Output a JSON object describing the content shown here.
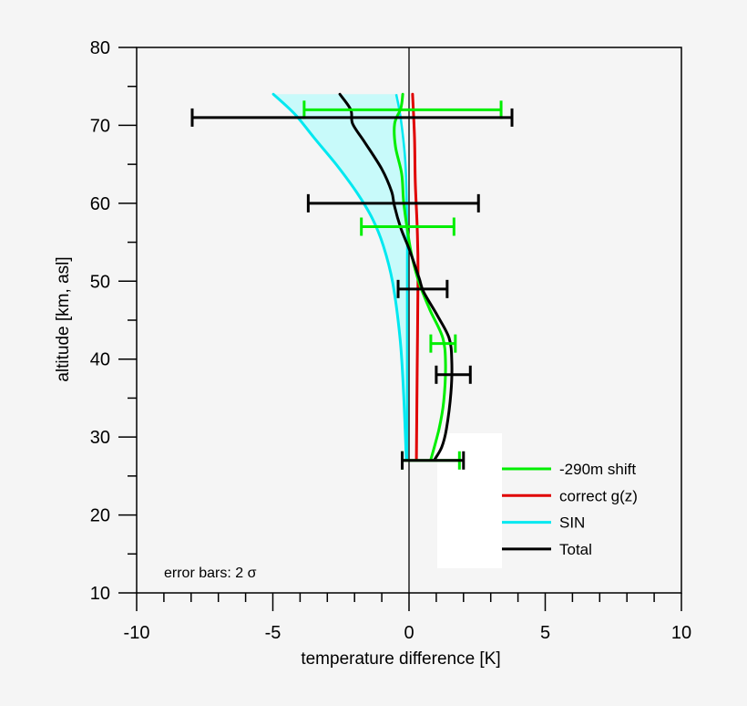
{
  "chart_data": {
    "type": "line",
    "title": "",
    "xlabel": "temperature difference [K]",
    "ylabel": "altitude [km, asl]",
    "xlim": [
      -10,
      10
    ],
    "ylim": [
      10,
      80
    ],
    "xticks": [
      -10,
      -5,
      0,
      5,
      10
    ],
    "xtick_labels": [
      "-10",
      "-5",
      "0",
      "5",
      "10"
    ],
    "x_minor_step": 1,
    "yticks": [
      10,
      20,
      30,
      40,
      50,
      60,
      70,
      80
    ],
    "ytick_labels": [
      "10",
      "20",
      "30",
      "40",
      "50",
      "60",
      "70",
      "80"
    ],
    "y_minor_step": 5,
    "grid": false,
    "zero_line": true,
    "legend_position": "lower right",
    "annotation": "error bars: 2 σ",
    "series": [
      {
        "name": "-290m shift",
        "color": "#00ee00",
        "points": [
          [
            -0.23,
            74
          ],
          [
            -0.3,
            72.2
          ],
          [
            -0.53,
            70.2
          ],
          [
            -0.5,
            67.3
          ],
          [
            -0.27,
            63.8
          ],
          [
            -0.2,
            60.3
          ],
          [
            -0.07,
            56.8
          ],
          [
            0.1,
            53.3
          ],
          [
            0.37,
            49.8
          ],
          [
            0.77,
            46.3
          ],
          [
            1.24,
            42.7
          ],
          [
            1.34,
            39.2
          ],
          [
            1.27,
            34.5
          ],
          [
            1.1,
            31
          ],
          [
            0.8,
            27.1
          ]
        ],
        "error_bars": [
          {
            "y": 72,
            "xmin": -3.85,
            "xmax": 3.38
          },
          {
            "y": 57,
            "xmin": -1.75,
            "xmax": 1.65
          },
          {
            "y": 42,
            "xmin": 0.8,
            "xmax": 1.7
          },
          {
            "y": 27,
            "xmin": -0.25,
            "xmax": 1.85
          }
        ]
      },
      {
        "name": "correct g(z)",
        "color": "#e00000",
        "points": [
          [
            0.13,
            74
          ],
          [
            0.2,
            68.5
          ],
          [
            0.23,
            62.6
          ],
          [
            0.3,
            56.8
          ],
          [
            0.33,
            50.9
          ],
          [
            0.3,
            39.2
          ],
          [
            0.27,
            27.1
          ]
        ]
      },
      {
        "name": "SIN",
        "color": "#00e8f0",
        "fill_color": "#c8fafa",
        "points": [
          [
            -4.98,
            74
          ],
          [
            -4.18,
            71.4
          ],
          [
            -3.51,
            68.5
          ],
          [
            -2.68,
            65
          ],
          [
            -1.94,
            61.5
          ],
          [
            -1.34,
            58
          ],
          [
            -0.94,
            54.5
          ],
          [
            -0.6,
            49.8
          ],
          [
            -0.33,
            42.7
          ],
          [
            -0.2,
            35.7
          ],
          [
            -0.1,
            27.1
          ]
        ],
        "band_upper": [
          [
            -0.47,
            74
          ],
          [
            -0.3,
            70.8
          ],
          [
            -0.13,
            65
          ],
          [
            -0.07,
            56.8
          ],
          [
            -0.07,
            49.8
          ],
          [
            -0.07,
            27.1
          ]
        ]
      },
      {
        "name": "Total",
        "color": "#000000",
        "points": [
          [
            -2.54,
            74
          ],
          [
            -2.14,
            72
          ],
          [
            -2.07,
            70.2
          ],
          [
            -1.64,
            67.9
          ],
          [
            -1.0,
            64.4
          ],
          [
            -0.64,
            61.5
          ],
          [
            -0.54,
            59.7
          ],
          [
            -0.3,
            56.8
          ],
          [
            0.03,
            53.9
          ],
          [
            0.37,
            50.4
          ],
          [
            0.54,
            48.6
          ],
          [
            1.04,
            45.6
          ],
          [
            1.47,
            42.7
          ],
          [
            1.57,
            39.8
          ],
          [
            1.54,
            35.7
          ],
          [
            1.37,
            31
          ],
          [
            1.2,
            28.7
          ],
          [
            0.94,
            27.1
          ]
        ],
        "error_bars": [
          {
            "y": 71,
            "xmin": -7.96,
            "xmax": 3.78
          },
          {
            "y": 60,
            "xmin": -3.7,
            "xmax": 2.55
          },
          {
            "y": 49,
            "xmin": -0.4,
            "xmax": 1.4
          },
          {
            "y": 38,
            "xmin": 1.0,
            "xmax": 2.25
          },
          {
            "y": 27,
            "xmin": -0.25,
            "xmax": 2.0
          }
        ]
      }
    ]
  }
}
